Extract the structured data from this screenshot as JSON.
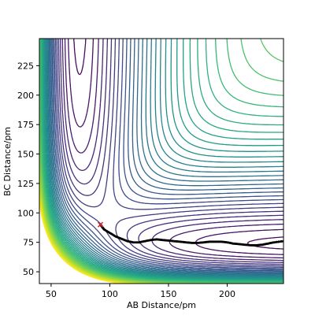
{
  "chart_data": {
    "type": "contour",
    "title": "",
    "xlabel": "AB Distance/pm",
    "ylabel": "BC Distance/pm",
    "xlim": [
      40,
      248
    ],
    "ylim": [
      40,
      248
    ],
    "xticks": [
      50,
      100,
      150,
      200
    ],
    "yticks": [
      50,
      75,
      100,
      125,
      150,
      175,
      200,
      225
    ],
    "colormap": "viridis",
    "contour_levels": 40,
    "start_point": {
      "x": 92,
      "y": 90,
      "marker": "x",
      "color": "#d62728"
    },
    "trajectory": {
      "color": "#000000",
      "marker": "dot",
      "points": [
        [
          92,
          90
        ],
        [
          95,
          86
        ],
        [
          100,
          83
        ],
        [
          105,
          80
        ],
        [
          110,
          78
        ],
        [
          115,
          76
        ],
        [
          120,
          75
        ],
        [
          125,
          75
        ],
        [
          130,
          76
        ],
        [
          135,
          77
        ],
        [
          140,
          77.5
        ],
        [
          145,
          77
        ],
        [
          150,
          76.5
        ],
        [
          155,
          76
        ],
        [
          160,
          75.5
        ],
        [
          165,
          75
        ],
        [
          170,
          74.5
        ],
        [
          175,
          74.5
        ],
        [
          180,
          75
        ],
        [
          185,
          75.5
        ],
        [
          190,
          75.5
        ],
        [
          195,
          75.5
        ],
        [
          200,
          75
        ],
        [
          205,
          74
        ],
        [
          210,
          73.5
        ],
        [
          215,
          73
        ],
        [
          220,
          72.5
        ],
        [
          225,
          72.5
        ],
        [
          230,
          73
        ],
        [
          235,
          74
        ],
        [
          240,
          75
        ],
        [
          248,
          76
        ]
      ]
    }
  }
}
